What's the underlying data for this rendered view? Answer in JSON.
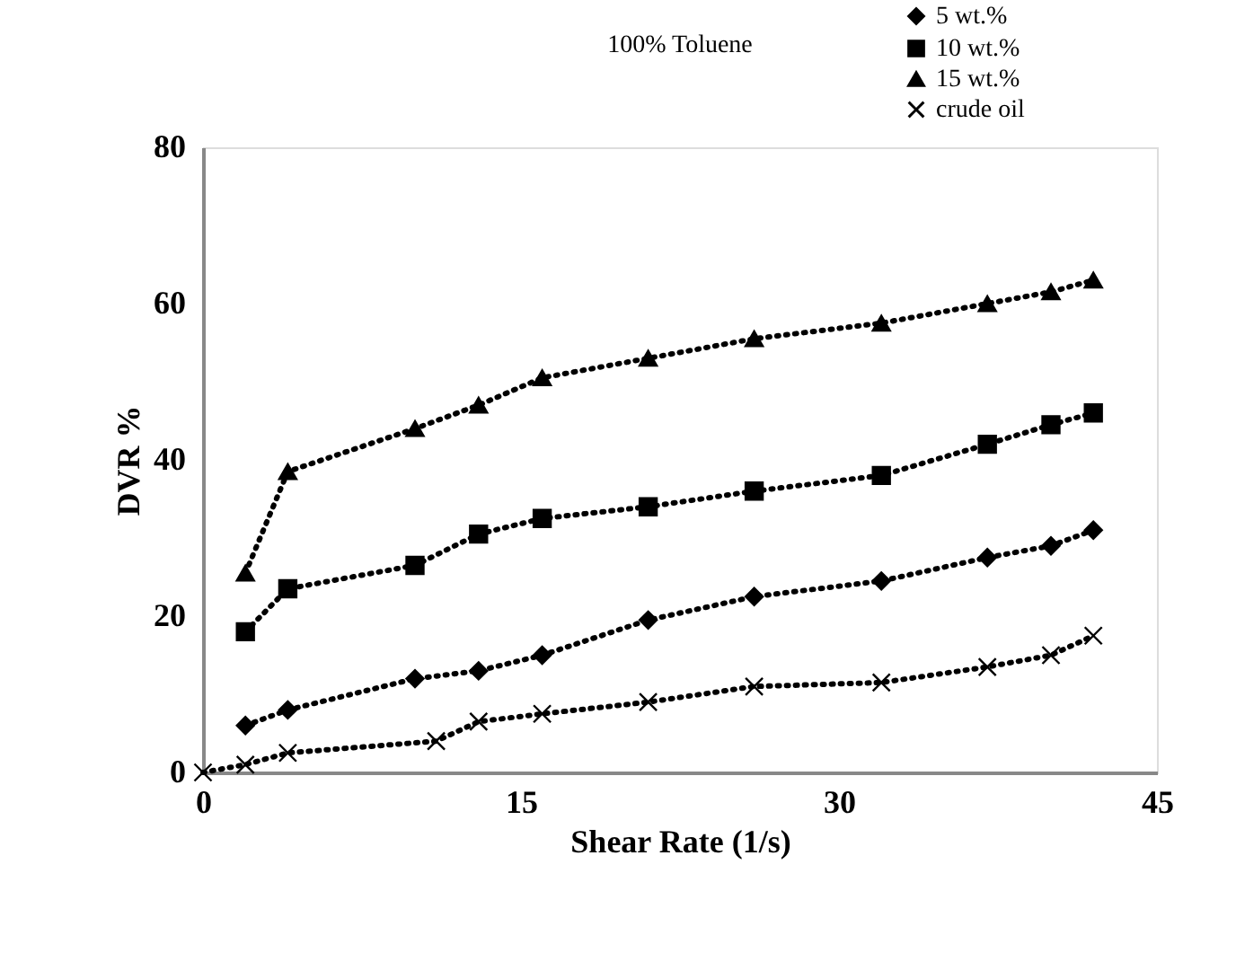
{
  "chart_data": {
    "type": "line",
    "title": "100% Toluene",
    "xlabel": "Shear Rate (1/s)",
    "ylabel": "DVR %",
    "xlim": [
      0,
      45
    ],
    "xticks": [
      0,
      15,
      30,
      45
    ],
    "ylim": [
      0,
      80
    ],
    "yticks": [
      0,
      20,
      40,
      60,
      80
    ],
    "grid": false,
    "legend": "top right",
    "line_style": "dotted",
    "series": [
      {
        "name": "5 wt.%",
        "color": "#000000",
        "marker": "diamond",
        "x": [
          2,
          4,
          10,
          13,
          16,
          21,
          26,
          32,
          37,
          40,
          42
        ],
        "values": [
          6,
          8,
          12,
          13,
          15,
          19.5,
          22.5,
          24.5,
          27.5,
          29,
          31
        ]
      },
      {
        "name": "10 wt.%",
        "color": "#000000",
        "marker": "square",
        "x": [
          2,
          4,
          10,
          13,
          16,
          21,
          26,
          32,
          37,
          40,
          42
        ],
        "values": [
          18,
          23.5,
          26.5,
          30.5,
          32.5,
          34,
          36,
          38,
          42,
          44.5,
          46
        ]
      },
      {
        "name": "15 wt.%",
        "color": "#000000",
        "marker": "triangle",
        "x": [
          2,
          4,
          10,
          13,
          16,
          21,
          26,
          32,
          37,
          40,
          42
        ],
        "values": [
          25.5,
          38.5,
          44,
          47,
          50.5,
          53,
          55.5,
          57.5,
          60,
          61.5,
          63
        ]
      },
      {
        "name": "crude oil",
        "color": "#000000",
        "marker": "cross",
        "x": [
          0,
          2,
          4,
          11,
          13,
          16,
          21,
          26,
          32,
          37,
          40,
          42
        ],
        "values": [
          0,
          1,
          2.5,
          4,
          6.5,
          7.5,
          9,
          11,
          11.5,
          13.5,
          15,
          17.5
        ]
      }
    ]
  }
}
